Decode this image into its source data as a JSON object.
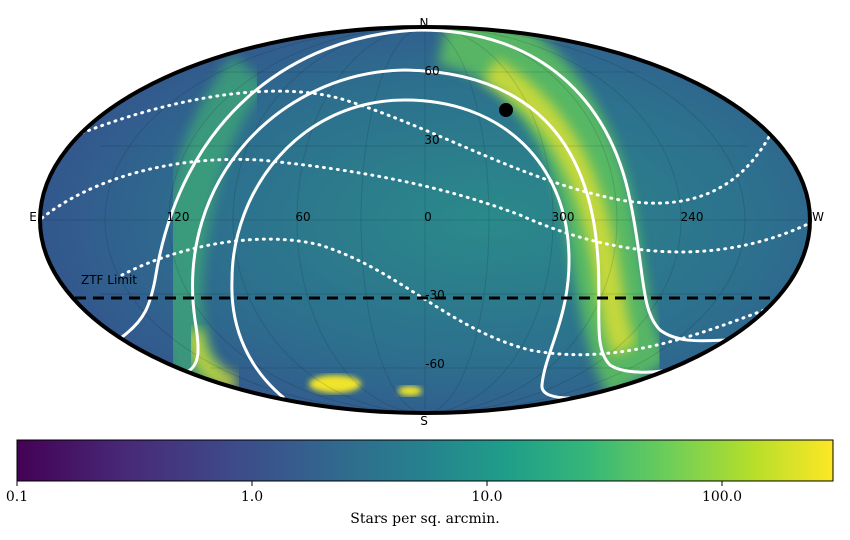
{
  "map": {
    "compass": {
      "north": "N",
      "south": "S",
      "east": "E",
      "west": "W"
    },
    "longitude_labels": [
      "120",
      "60",
      "0",
      "300",
      "240"
    ],
    "latitude_labels": [
      "60",
      "30",
      "-30",
      "-60"
    ],
    "zero_label": "0",
    "annotation": "ZTF Limit",
    "limit_line_dec": -30,
    "colors": {
      "cmap_low": "#440154",
      "cmap_mid": "#21918c",
      "cmap_high": "#fde725",
      "outline": "#000000",
      "curves": "#ffffff"
    }
  },
  "colorbar": {
    "scale": "log",
    "range": [
      0.1,
      300
    ],
    "ticks": [
      "0.1",
      "1.0",
      "10.0",
      "100.0"
    ],
    "label": "Stars per sq. arcmin."
  }
}
